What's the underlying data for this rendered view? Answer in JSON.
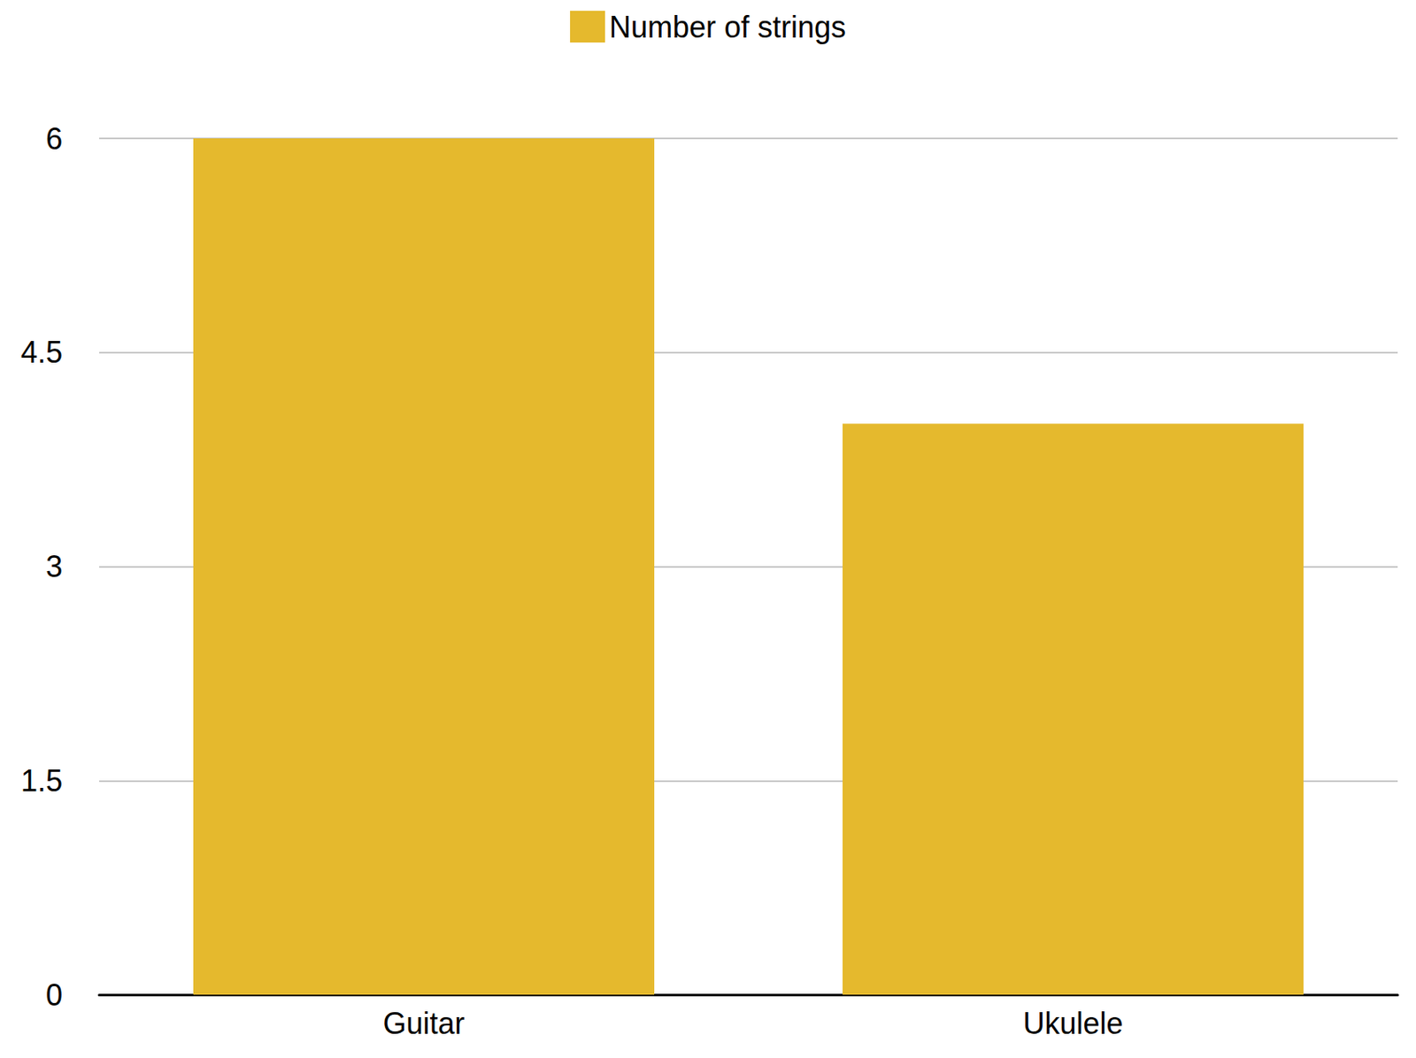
{
  "chart_data": {
    "type": "bar",
    "categories": [
      "Guitar",
      "Ukulele"
    ],
    "series": [
      {
        "name": "Number of strings",
        "color": "#e5b92d",
        "values": [
          6,
          4
        ]
      }
    ],
    "ylim": [
      0,
      6
    ],
    "yticks": [
      0,
      1.5,
      3,
      4.5,
      6
    ],
    "grid": true,
    "legend": "top"
  }
}
